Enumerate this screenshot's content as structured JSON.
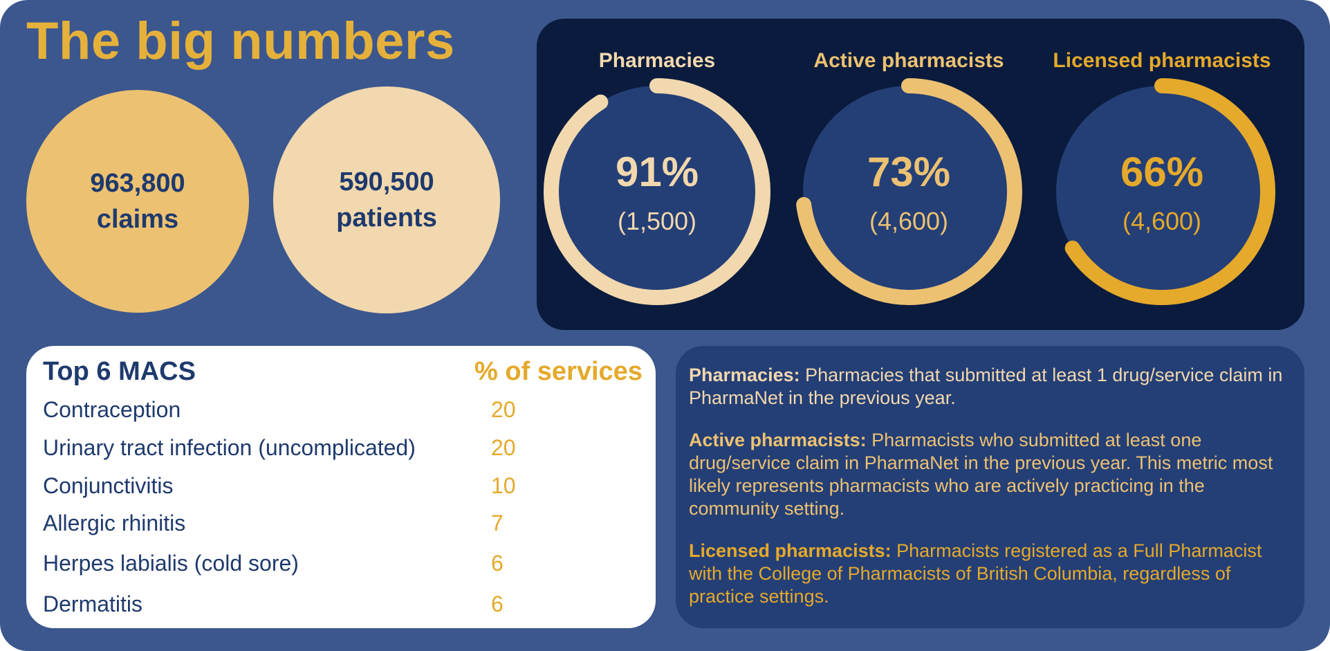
{
  "title": "The big numbers",
  "colors": {
    "background": "#3c578d",
    "title": "#e5b13b",
    "dark_panel": "#0a1b3d",
    "navy": "#1e3a6d",
    "gold": "#e5a92b",
    "light_gold": "#ecc172",
    "cream": "#f2d8ae"
  },
  "bubbles": [
    {
      "value": "963,800",
      "label": "claims"
    },
    {
      "value": "590,500",
      "label": "patients"
    }
  ],
  "donuts": [
    {
      "title": "Pharmacies",
      "percent_label": "91%",
      "count_label": "(1,500)",
      "fraction": 0.91,
      "color": "#f2d8ae"
    },
    {
      "title": "Active pharmacists",
      "percent_label": "73%",
      "count_label": "(4,600)",
      "fraction": 0.73,
      "color": "#ecc172"
    },
    {
      "title": "Licensed pharmacists",
      "percent_label": "66%",
      "count_label": "(4,600)",
      "fraction": 0.66,
      "color": "#e5a92b"
    }
  ],
  "macs": {
    "heading": "Top 6 MACS",
    "value_heading": "% of services",
    "rows": [
      {
        "condition": "Contraception",
        "percent": "20"
      },
      {
        "condition": "Urinary tract infection (uncomplicated)",
        "percent": "20"
      },
      {
        "condition": "Conjunctivitis",
        "percent": "10"
      },
      {
        "condition": "Allergic rhinitis",
        "percent": "7"
      },
      {
        "condition": "Herpes labialis (cold sore)",
        "percent": "6"
      },
      {
        "condition": "Dermatitis",
        "percent": "6"
      }
    ]
  },
  "definitions": [
    {
      "term": "Pharmacies:",
      "text": "Pharmacies that submitted at least 1 drug/service claim in PharmaNet in the previous year."
    },
    {
      "term": "Active pharmacists:",
      "text": "Pharmacists who submitted at least one drug/service claim in PharmaNet in the previous year. This metric most likely represents pharmacists who are actively practicing in the community setting."
    },
    {
      "term": "Licensed pharmacists:",
      "text": "Pharmacists registered as a Full Pharmacist with the College of Pharmacists of British Columbia, regardless of practice settings."
    }
  ]
}
